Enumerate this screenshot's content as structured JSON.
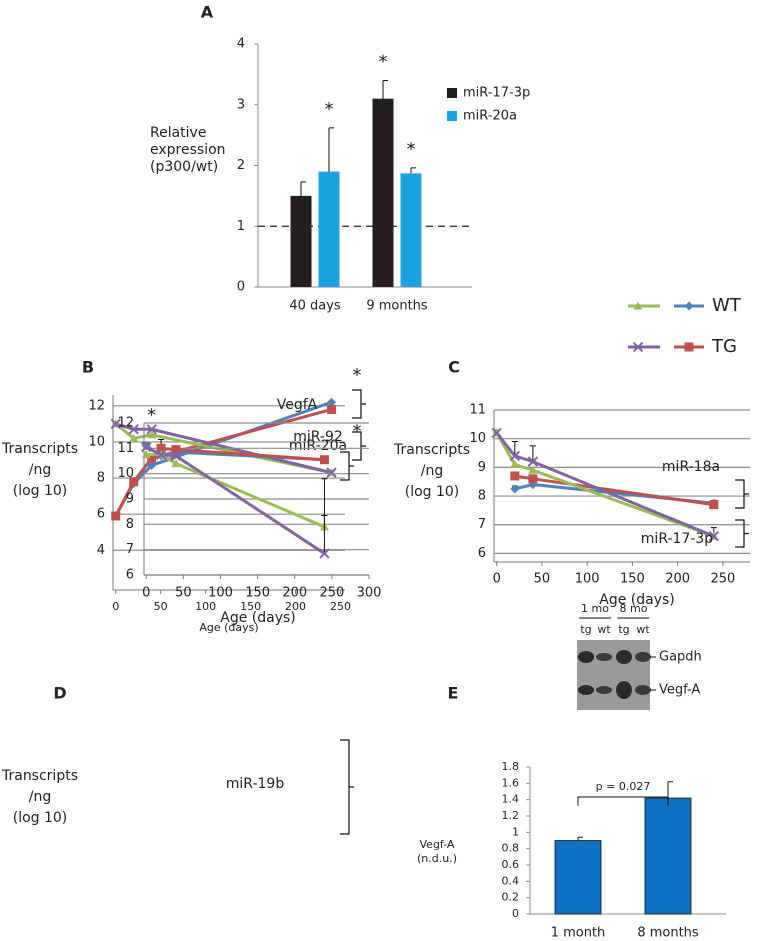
{
  "chart_data": [
    {
      "type": "bar",
      "panel_label": "A",
      "y_label": [
        "Relative",
        "expression",
        "(p300/wt)"
      ],
      "categories": [
        "40 days",
        "9 months"
      ],
      "series": [
        {
          "name": "miR-17-3p",
          "color": "#231f20",
          "values": [
            1.5,
            3.1
          ],
          "errors": [
            0.23,
            0.3
          ],
          "annotations": [
            null,
            "*"
          ]
        },
        {
          "name": "miR-20a",
          "color": "#1aa3e0",
          "values": [
            1.9,
            1.87
          ],
          "errors": [
            0.72,
            0.09
          ],
          "annotations": [
            "*",
            "*"
          ]
        }
      ],
      "ylim": [
        0,
        4
      ],
      "yticks": [
        0,
        1,
        2,
        3,
        4
      ],
      "reference_line": 1
    },
    {
      "type": "line",
      "panel_label": "B",
      "y_label": [
        "Transcripts",
        "/ng",
        "(log 10)"
      ],
      "x_label": "Age (days)",
      "x": [
        0,
        20,
        40,
        240
      ],
      "xlim": [
        -3,
        255
      ],
      "xticks": [
        0,
        50,
        100,
        150,
        200,
        250
      ],
      "ylim": [
        1.8,
        12.6
      ],
      "yticks": [
        4,
        6,
        8,
        10,
        12
      ],
      "grid": true,
      "x_annotations": [
        {
          "x": 40,
          "text": "*"
        }
      ],
      "groups": [
        {
          "label": "VegfA",
          "annotation": "*",
          "series": [
            {
              "color": "#4f81bd",
              "marker": "diamond",
              "values": [
                5.9,
                7.7,
                8.7,
                12.2
              ]
            },
            {
              "color": "#c0504d",
              "marker": "square",
              "values": [
                5.9,
                7.8,
                9.1,
                11.8
              ]
            }
          ]
        },
        {
          "label": "miR-20a",
          "annotation": "*",
          "series": [
            {
              "color": "#9bbb59",
              "marker": "triangle",
              "values": [
                11.0,
                10.2,
                10.4,
                8.3
              ]
            },
            {
              "color": "#8064a2",
              "marker": "x",
              "values": [
                11.0,
                10.7,
                10.7,
                8.3
              ]
            }
          ]
        }
      ]
    },
    {
      "type": "line",
      "panel_label": "C",
      "y_label": [
        "Transcripts",
        "/ng",
        "(log 10)"
      ],
      "x_label": "Age (days)",
      "x": [
        0,
        20,
        40,
        240
      ],
      "xlim": [
        -3,
        280
      ],
      "xticks": [
        0,
        50,
        100,
        150,
        200,
        250
      ],
      "ylim": [
        5.7,
        11
      ],
      "yticks": [
        6,
        7,
        8,
        9,
        10,
        11
      ],
      "grid": true,
      "groups": [
        {
          "label": "miR-18a",
          "series": [
            {
              "color": "#4f81bd",
              "marker": "diamond",
              "values": [
                null,
                8.25,
                8.4,
                7.75
              ],
              "errors": [
                null,
                0.1,
                null,
                0.1
              ]
            },
            {
              "color": "#c0504d",
              "marker": "square",
              "values": [
                null,
                8.7,
                8.6,
                7.7
              ]
            }
          ]
        },
        {
          "label": "miR-17-3p",
          "series": [
            {
              "color": "#9bbb59",
              "marker": "triangle",
              "values": [
                10.2,
                9.1,
                8.9,
                6.6
              ],
              "errors": [
                0.1,
                null,
                null,
                0.3
              ]
            },
            {
              "color": "#8064a2",
              "marker": "x",
              "values": [
                10.2,
                9.4,
                9.2,
                6.6
              ],
              "errors": [
                null,
                0.5,
                0.55,
                null
              ]
            }
          ]
        }
      ]
    },
    {
      "type": "line",
      "panel_label": "D",
      "y_label": [
        "Transcripts",
        "/ng",
        "(log 10)"
      ],
      "x_label": "Age (days)",
      "x": [
        0,
        20,
        40,
        240
      ],
      "xlim": [
        -3,
        300
      ],
      "xticks": [
        0,
        50,
        100,
        150,
        200,
        250,
        300
      ],
      "ylim": [
        6,
        12
      ],
      "yticks": [
        6,
        7,
        8,
        9,
        10,
        11,
        12
      ],
      "grid": true,
      "groups": [
        {
          "label": "miR-92",
          "series": [
            {
              "color": "#4f81bd",
              "marker": "diamond",
              "values": [
                11.1,
                10.7,
                10.85,
                10.55
              ],
              "errors": [
                0.1,
                null,
                null,
                null
              ]
            },
            {
              "color": "#c0504d",
              "marker": "square",
              "values": [
                null,
                11.0,
                10.95,
                10.55
              ],
              "errors": [
                null,
                0.35,
                null,
                null
              ]
            }
          ]
        },
        {
          "label": "miR-19b",
          "series": [
            {
              "color": "#9bbb59",
              "marker": "triangle",
              "values": [
                10.75,
                10.75,
                10.4,
                7.9
              ],
              "errors": [
                null,
                null,
                null,
                1.9
              ]
            },
            {
              "color": "#8064a2",
              "marker": "x",
              "values": [
                11.05,
                10.75,
                10.7,
                6.85
              ],
              "errors": [
                null,
                null,
                null,
                1.5
              ]
            }
          ]
        }
      ]
    },
    {
      "type": "bar",
      "panel_label": "E",
      "y_label": [
        "Vegf-A",
        "(n.d.u.)"
      ],
      "categories": [
        "1 month",
        "8 months"
      ],
      "series": [
        {
          "color": "#0e72c3",
          "values": [
            0.9,
            1.42
          ],
          "errors": [
            0.04,
            0.2
          ]
        }
      ],
      "ylim": [
        0,
        1.8
      ],
      "yticks": [
        0,
        0.2,
        0.4,
        0.6,
        0.8,
        1,
        1.2,
        1.4,
        1.6,
        1.8
      ],
      "comparison": "p = 0.027",
      "blot": {
        "time_labels": [
          "1 mo",
          "8 mo"
        ],
        "lane_labels": [
          "tg",
          "wt",
          "tg",
          "wt"
        ],
        "band_labels": [
          "Gapdh",
          "Vegf-A"
        ]
      }
    }
  ],
  "legend": [
    {
      "name": "WT",
      "styles": [
        {
          "color": "#9bbb59",
          "marker": "triangle"
        },
        {
          "color": "#4f81bd",
          "marker": "diamond"
        }
      ]
    },
    {
      "name": "TG",
      "styles": [
        {
          "color": "#8064a2",
          "marker": "x"
        },
        {
          "color": "#c0504d",
          "marker": "square"
        }
      ]
    }
  ]
}
